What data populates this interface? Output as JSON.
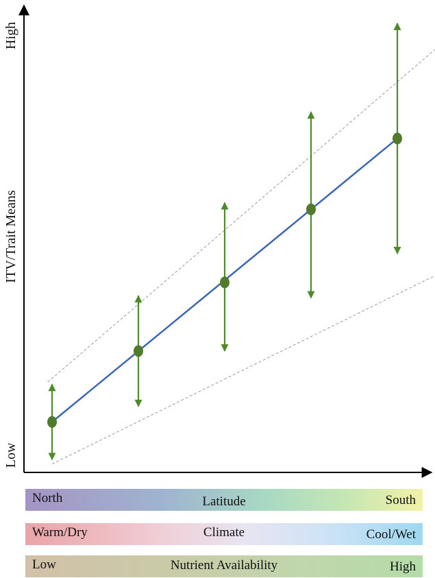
{
  "chart_data": {
    "type": "line",
    "title": "",
    "ylabel": "ITV/Trait Means",
    "y_tick_labels": {
      "low": "Low",
      "high": "High"
    },
    "x": [
      1,
      2,
      3,
      4,
      5
    ],
    "ylim": [
      0,
      10
    ],
    "series": [
      {
        "name": "trait mean",
        "values": [
          1.0,
          2.6,
          4.15,
          5.8,
          7.4
        ]
      }
    ],
    "error_bars": {
      "lower": [
        0.15,
        1.35,
        2.6,
        3.8,
        4.8
      ],
      "upper": [
        1.85,
        3.85,
        5.95,
        8.0,
        10.0
      ]
    },
    "envelope": {
      "upper": {
        "x": [
          0.95,
          5.85
        ],
        "values": [
          1.9,
          10.1
        ]
      },
      "lower": {
        "x": [
          1.0,
          5.85
        ],
        "values": [
          0.05,
          4.7
        ]
      }
    },
    "colors": {
      "line": "#3b66b3",
      "points": "#527a2c",
      "error_bars": "#4f8a2a",
      "envelope": "#999999",
      "axis": "#000000"
    }
  },
  "gradients": [
    {
      "left": "North",
      "center": "Latitude",
      "right": "South"
    },
    {
      "left": "Warm/Dry",
      "center": "Climate",
      "right": "Cool/Wet"
    },
    {
      "left": "Low",
      "center": "Nutrient Availability",
      "right": "High"
    }
  ]
}
